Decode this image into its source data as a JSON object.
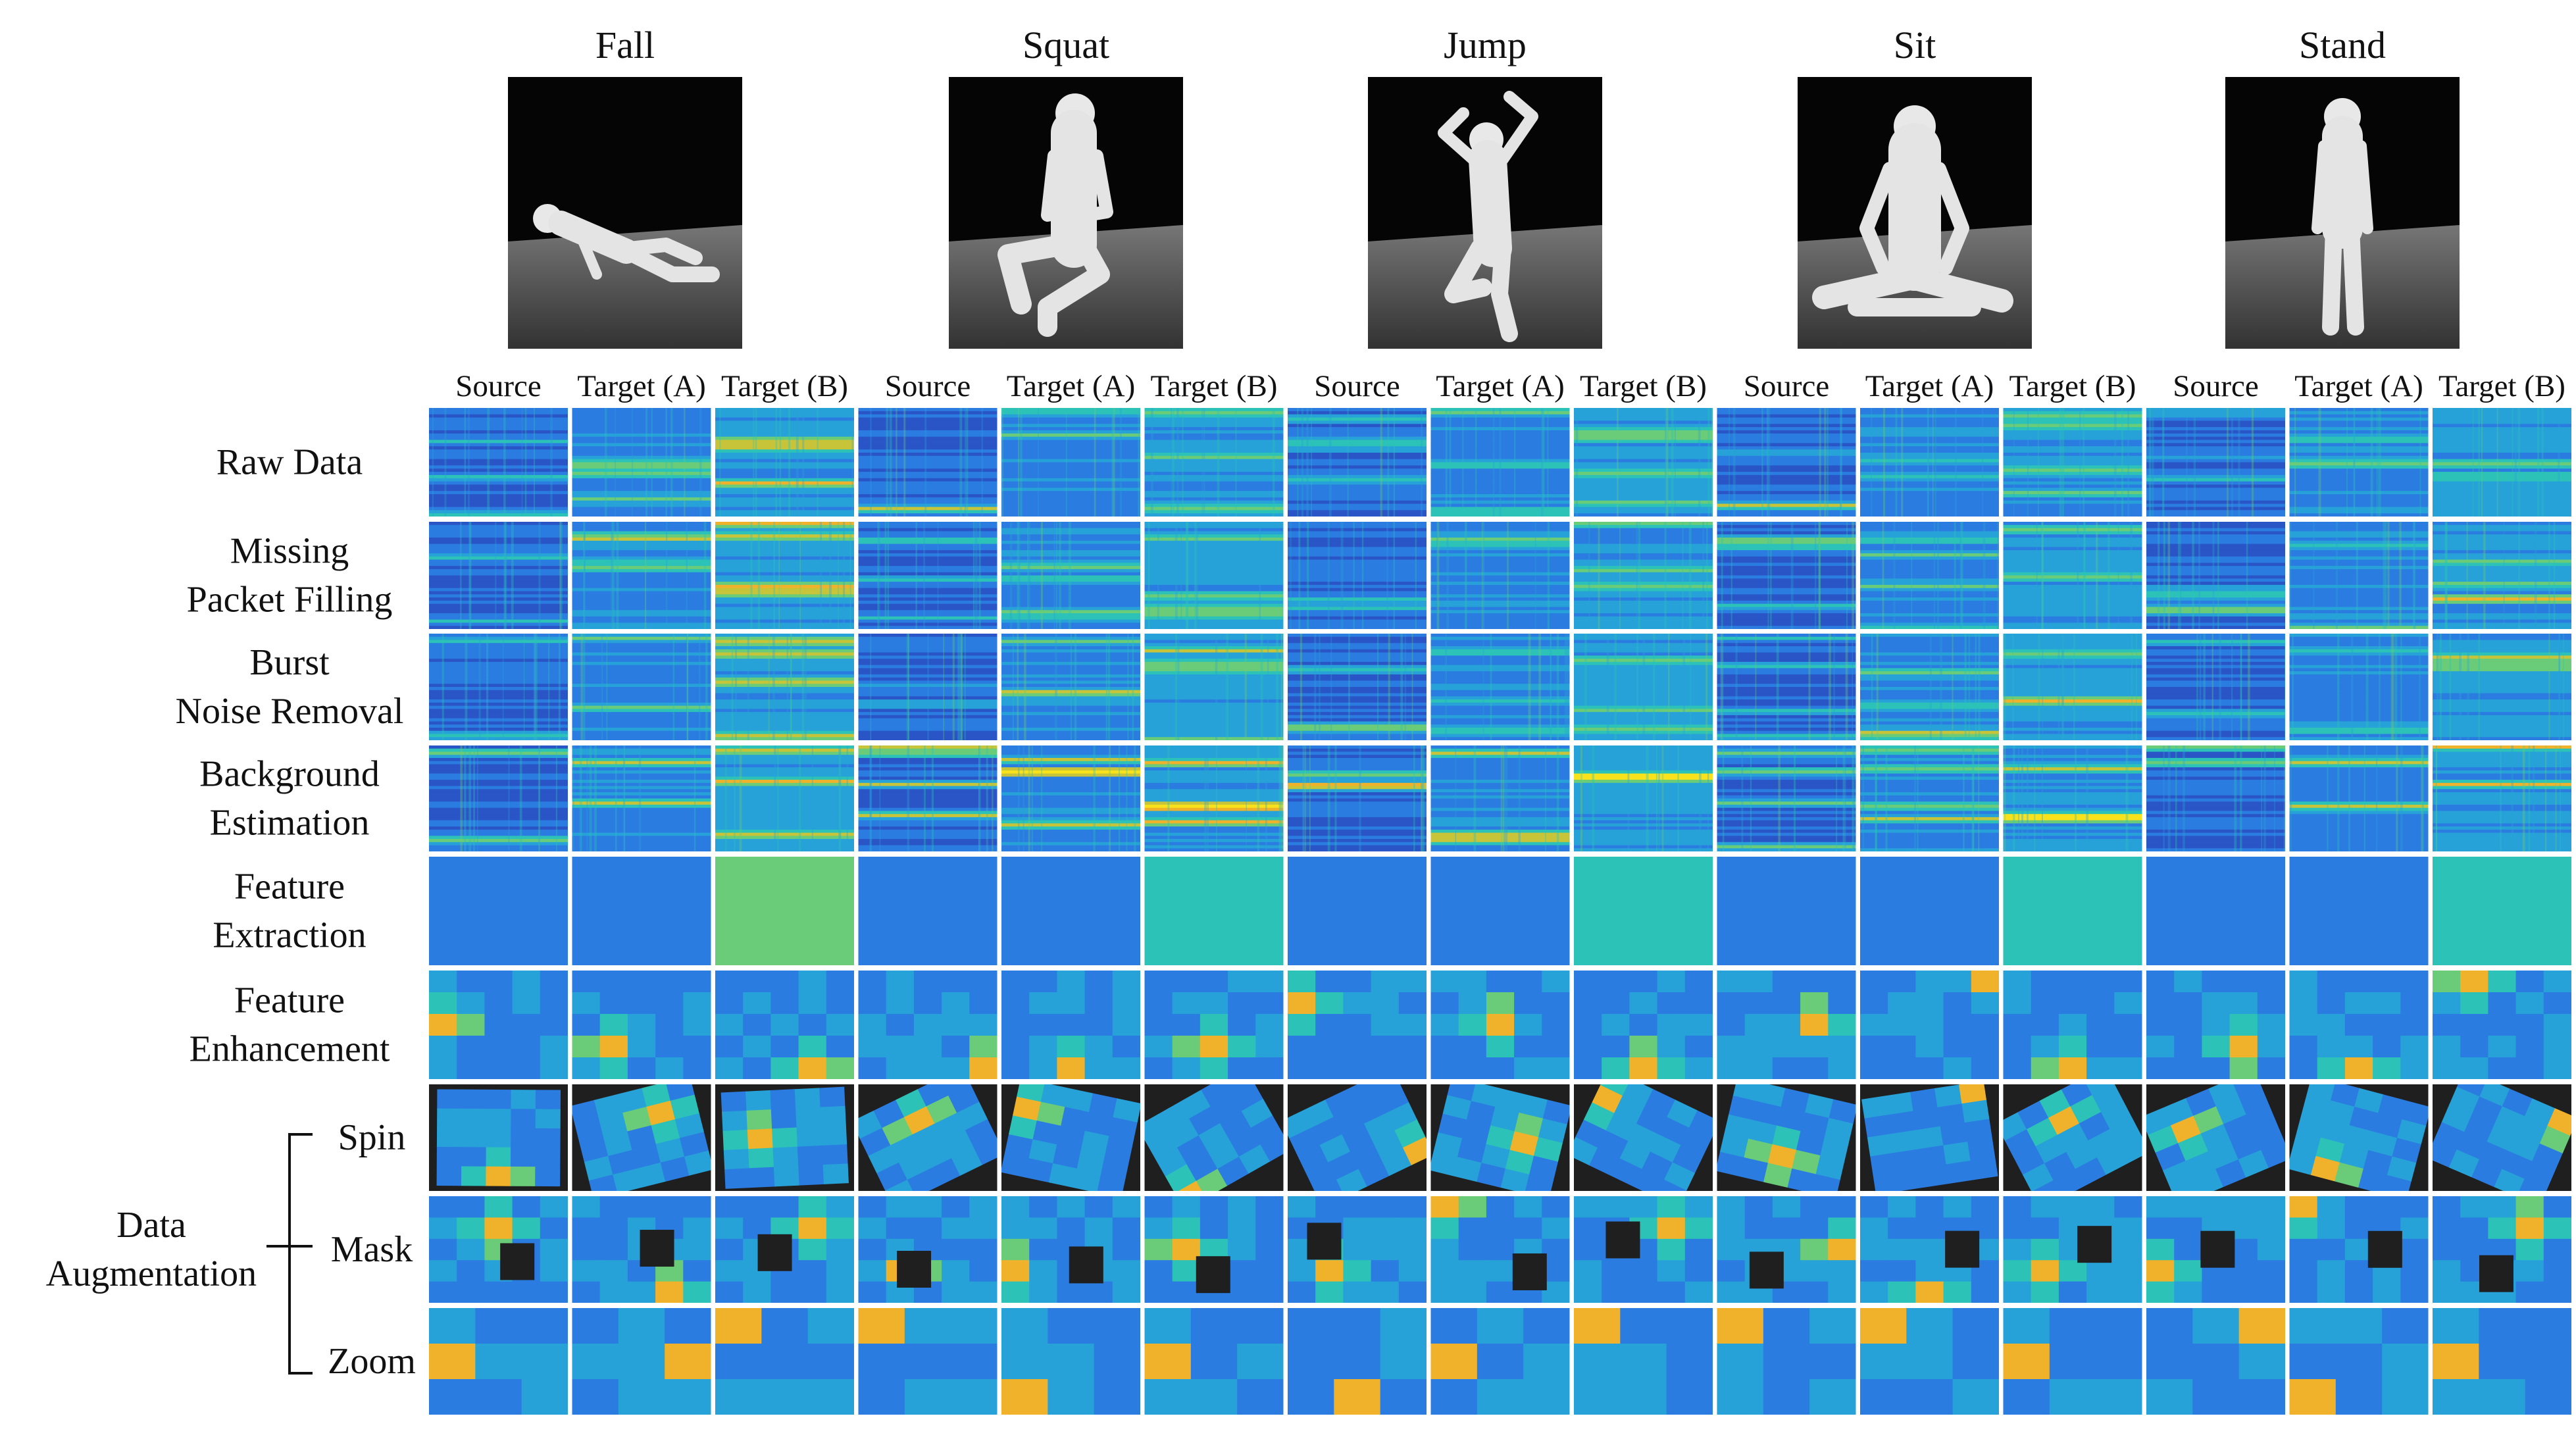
{
  "figure": {
    "activities": [
      {
        "name": "Fall",
        "pose": "fall"
      },
      {
        "name": "Squat",
        "pose": "squat"
      },
      {
        "name": "Jump",
        "pose": "jump"
      },
      {
        "name": "Sit",
        "pose": "sit"
      },
      {
        "name": "Stand",
        "pose": "stand"
      }
    ],
    "domains": [
      "Source",
      "Target (A)",
      "Target (B)"
    ],
    "rows": [
      {
        "id": "raw",
        "label_lines": [
          "Raw Data"
        ],
        "type": "stripes"
      },
      {
        "id": "fill",
        "label_lines": [
          "Missing",
          "Packet Filling"
        ],
        "type": "stripes"
      },
      {
        "id": "burst",
        "label_lines": [
          "Burst",
          "Noise Removal"
        ],
        "type": "stripes"
      },
      {
        "id": "bg",
        "label_lines": [
          "Background",
          "Estimation"
        ],
        "type": "stripes-strong"
      },
      {
        "id": "feat",
        "label_lines": [
          "Feature",
          "Extraction"
        ],
        "type": "flat"
      },
      {
        "id": "enh",
        "label_lines": [
          "Feature",
          "Enhancement"
        ],
        "type": "blocks"
      },
      {
        "id": "spin",
        "label_lines": [
          "Spin"
        ],
        "type": "spin"
      },
      {
        "id": "mask",
        "label_lines": [
          "Mask"
        ],
        "type": "mask"
      },
      {
        "id": "zoom",
        "label_lines": [
          "Zoom"
        ],
        "type": "zoom"
      }
    ],
    "augmentation_group_label": [
      "Data",
      "Augmentation"
    ],
    "colormap": [
      "#2a3590",
      "#2a55c6",
      "#2b7ce0",
      "#27a2d8",
      "#2cc2b8",
      "#6acc78",
      "#c7c43a",
      "#f0b22a",
      "#f8e21c"
    ]
  }
}
